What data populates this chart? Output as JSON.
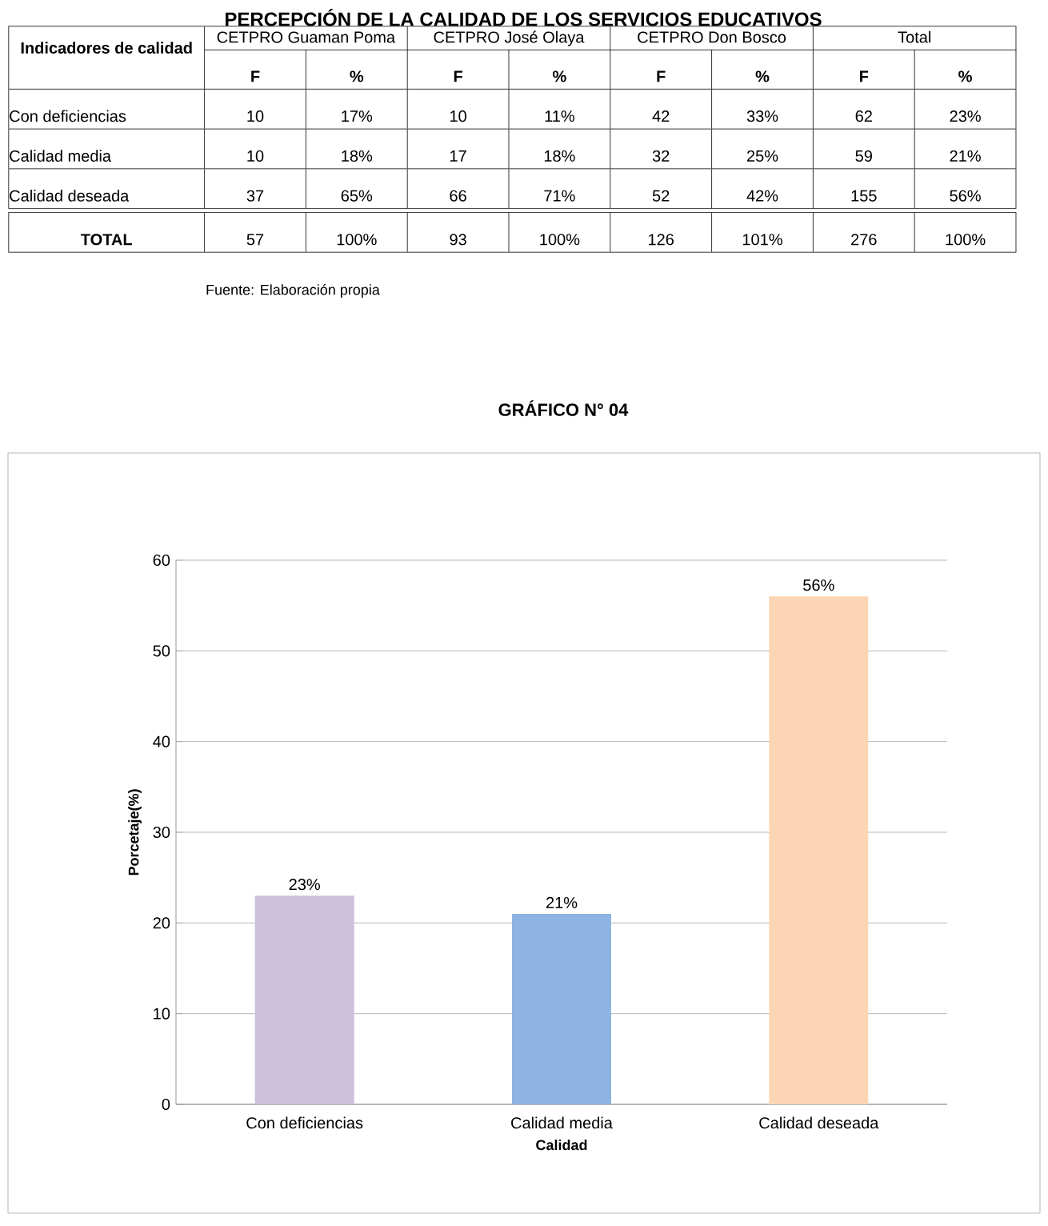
{
  "chart_data": [
    {
      "type": "other",
      "title": "PERCEPCIÓN DE LA CALIDAD DE LOS SERVICIOS EDUCATIVOS",
      "categories": [
        "Indicadores de calidad",
        "CETPRO Guaman Poma",
        "CETPRO José Olaya",
        "CETPRO Don Bosco",
        "Total"
      ],
      "y_categories": [
        "Con deficiencias",
        "Calidad media",
        "Calidad deseada",
        "TOTAL"
      ],
      "cell_labels": [
        [
          "10",
          "17%",
          "10",
          "11%",
          "42",
          "33%",
          "62",
          "23%"
        ],
        [
          "10",
          "18%",
          "17",
          "18%",
          "32",
          "25%",
          "59",
          "21%"
        ],
        [
          "37",
          "65%",
          "66",
          "71%",
          "52",
          "42%",
          "155",
          "56%"
        ],
        [
          "57",
          "100%",
          "93",
          "100%",
          "126",
          "101%",
          "276",
          "100%"
        ]
      ],
      "annotations": [
        "F",
        "%",
        "F",
        "%",
        "F",
        "%",
        "F",
        "%",
        "Fuente: Elaboración propia"
      ]
    },
    {
      "type": "bar",
      "title": "GRÁFICO N° 04",
      "xlabel": "Calidad",
      "ylabel": "Porcetaje(%)",
      "categories": [
        "Con deficiencias",
        "Calidad media",
        "Calidad deseada"
      ],
      "values": [
        23,
        21,
        56
      ],
      "colors": [
        "#ccc0da",
        "#8db4e2",
        "#fcd5b4"
      ],
      "value_labels": [
        "23%",
        "21%",
        "56%"
      ],
      "ylim": [
        0,
        60
      ],
      "yticks": [
        0,
        10,
        20,
        30,
        40,
        50,
        60
      ],
      "grid": "y"
    }
  ]
}
